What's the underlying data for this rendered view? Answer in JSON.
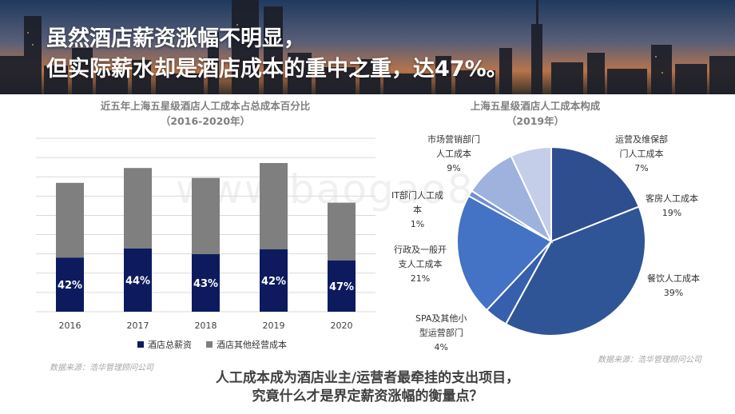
{
  "header": {
    "line1": "虽然酒店薪资涨幅不明显，",
    "line2": "但实际薪水却是酒店成本的重中之重，达47%。"
  },
  "watermark": "www.baogao8.com",
  "bar_title": {
    "line1": "近五年上海五星级酒店人工成本占总成本百分比",
    "line2": "（2016-2020年）"
  },
  "pie_title": {
    "line1": "上海五星级酒店人工成本构成",
    "line2": "（2019年）"
  },
  "legend": {
    "series1": "酒店总薪资",
    "series2": "酒店其他经营成本"
  },
  "source_left": "数据来源：浩华管理顾问公司",
  "source_right": "数据来源：浩华管理顾问公司",
  "bottom": {
    "line1": "人工成本成为酒店业主/运营者最牵挂的支出项目，",
    "line2": "究竟什么才是界定薪资涨幅的衡量点？"
  },
  "colors": {
    "salary": "#0d1b5e",
    "other": "#7f7f7f",
    "grid": "#d9d9d9"
  },
  "chart_data": [
    {
      "type": "bar",
      "stacked": true,
      "title": "近五年上海五星级酒店人工成本占总成本百分比（2016-2020年）",
      "categories": [
        "2016",
        "2017",
        "2018",
        "2019",
        "2020"
      ],
      "series": [
        {
          "name": "酒店总薪资",
          "values": [
            42,
            44,
            43,
            42,
            47
          ],
          "labels": [
            "42%",
            "44%",
            "43%",
            "42%",
            "47%"
          ],
          "color": "#0d1b5e"
        },
        {
          "name": "酒店其他经营成本",
          "values": [
            58,
            56,
            57,
            58,
            53
          ],
          "color": "#7f7f7f"
        }
      ],
      "ylim": [
        0,
        100
      ],
      "grid": true,
      "legend": "bottom"
    },
    {
      "type": "pie",
      "title": "上海五星级酒店人工成本构成（2019年）",
      "slices": [
        {
          "label": "客房人工成本",
          "value": 19,
          "pct": "19%",
          "color": "#2f4e8f"
        },
        {
          "label": "餐饮人工成本",
          "value": 39,
          "pct": "39%",
          "color": "#2f5597"
        },
        {
          "label": "SPA及其他小型运营部门",
          "value": 4,
          "pct": "4%",
          "color": "#3660ad"
        },
        {
          "label": "行政及一般开支人工成本",
          "value": 21,
          "pct": "21%",
          "color": "#4472c4"
        },
        {
          "label": "IT部门人工成本",
          "value": 1,
          "pct": "1%",
          "color": "#6e8fd0"
        },
        {
          "label": "市场营销部门人工成本",
          "value": 9,
          "pct": "9%",
          "color": "#9fb2de"
        },
        {
          "label": "运营及维保部门人工成本",
          "value": 7,
          "pct": "7%",
          "color": "#c5cee9"
        }
      ]
    }
  ],
  "pie_labels": [
    {
      "l1": "运营及维保部",
      "l2": "门人工成本",
      "l3": "7%"
    },
    {
      "l1": "客房人工成本",
      "l2": "19%"
    },
    {
      "l1": "餐饮人工成本",
      "l2": "39%"
    },
    {
      "l1": "SPA及其他小",
      "l2": "型运营部门",
      "l3": "4%"
    },
    {
      "l1": "行政及一般开",
      "l2": "支人工成本",
      "l3": "21%"
    },
    {
      "l1": "IT部门人工成",
      "l2": "本",
      "l3": "1%"
    },
    {
      "l1": "市场营销部门",
      "l2": "人工成本",
      "l3": "9%"
    }
  ]
}
